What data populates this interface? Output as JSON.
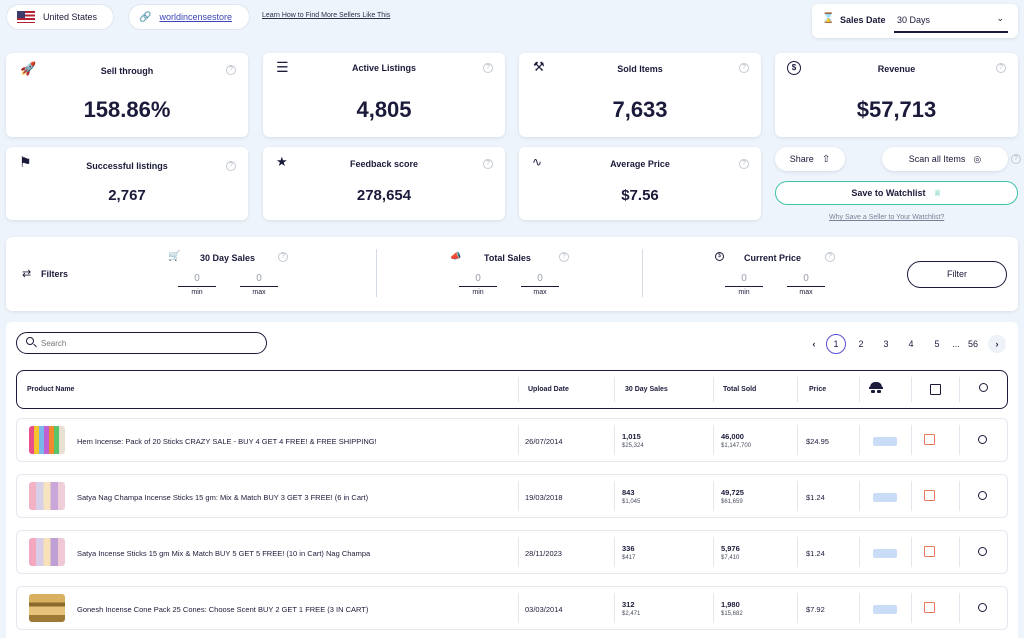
{
  "top": {
    "country": "United States",
    "seller": "worldincensestore",
    "learn_link": "Learn How to Find More Sellers Like This",
    "sales_date_label": "Sales Date",
    "sales_date_value": "30 Days"
  },
  "stats": {
    "sell_through": {
      "title": "Sell through",
      "value": "158.86%"
    },
    "active_listings": {
      "title": "Active Listings",
      "value": "4,805"
    },
    "sold_items": {
      "title": "Sold Items",
      "value": "7,633"
    },
    "revenue": {
      "title": "Revenue",
      "value": "$57,713"
    },
    "successful_listings": {
      "title": "Successful listings",
      "value": "2,767"
    },
    "feedback_score": {
      "title": "Feedback score",
      "value": "278,654"
    },
    "average_price": {
      "title": "Average Price",
      "value": "$7.56"
    }
  },
  "actions": {
    "share": "Share",
    "scan_all": "Scan all Items",
    "save_watchlist": "Save to Watchlist",
    "why_save": "Why Save a Seller to Your Watchlist?"
  },
  "filters": {
    "label": "Filters",
    "groups": [
      {
        "title": "30 Day Sales",
        "min": "0",
        "max": "0"
      },
      {
        "title": "Total Sales",
        "min": "0",
        "max": "0"
      },
      {
        "title": "Current Price",
        "min": "0",
        "max": "0"
      }
    ],
    "min_label": "min",
    "max_label": "max",
    "filter_button": "Filter"
  },
  "search": {
    "placeholder": "Search"
  },
  "pagination": {
    "pages": [
      "1",
      "2",
      "3",
      "4",
      "5"
    ],
    "ellipsis": "...",
    "last": "56"
  },
  "table": {
    "headers": {
      "product": "Product Name",
      "upload": "Upload Date",
      "sales30": "30 Day Sales",
      "total": "Total Sold",
      "price": "Price"
    },
    "rows": [
      {
        "name": "Hem Incense: Pack of 20 Sticks CRAZY SALE - BUY 4 GET 4 FREE! & FREE SHIPPING!",
        "date": "26/07/2014",
        "sales": "1,015",
        "sales_rev": "$25,324",
        "total": "46,000",
        "total_rev": "$1,147,700",
        "price": "$24.95"
      },
      {
        "name": "Satya Nag Champa Incense Sticks 15 gm: Mix & Match BUY 3 GET 3 FREE! (6 in Cart)",
        "date": "19/03/2018",
        "sales": "843",
        "sales_rev": "$1,045",
        "total": "49,725",
        "total_rev": "$61,659",
        "price": "$1.24"
      },
      {
        "name": "Satya Incense Sticks 15 gm Mix & Match BUY 5 GET 5 FREE! (10 in Cart) Nag Champa",
        "date": "28/11/2023",
        "sales": "336",
        "sales_rev": "$417",
        "total": "5,976",
        "total_rev": "$7,410",
        "price": "$1.24"
      },
      {
        "name": "Gonesh Incense Cone Pack 25 Cones: Choose Scent BUY 2 GET 1 FREE (3 IN CART)",
        "date": "03/03/2014",
        "sales": "312",
        "sales_rev": "$2,471",
        "total": "1,980",
        "total_rev": "$15,682",
        "price": "$7.92"
      }
    ]
  },
  "colors": {
    "accent": "#5b4fd6",
    "watchlist_border": "#3fc4a8",
    "navy": "#1a1a3a"
  }
}
